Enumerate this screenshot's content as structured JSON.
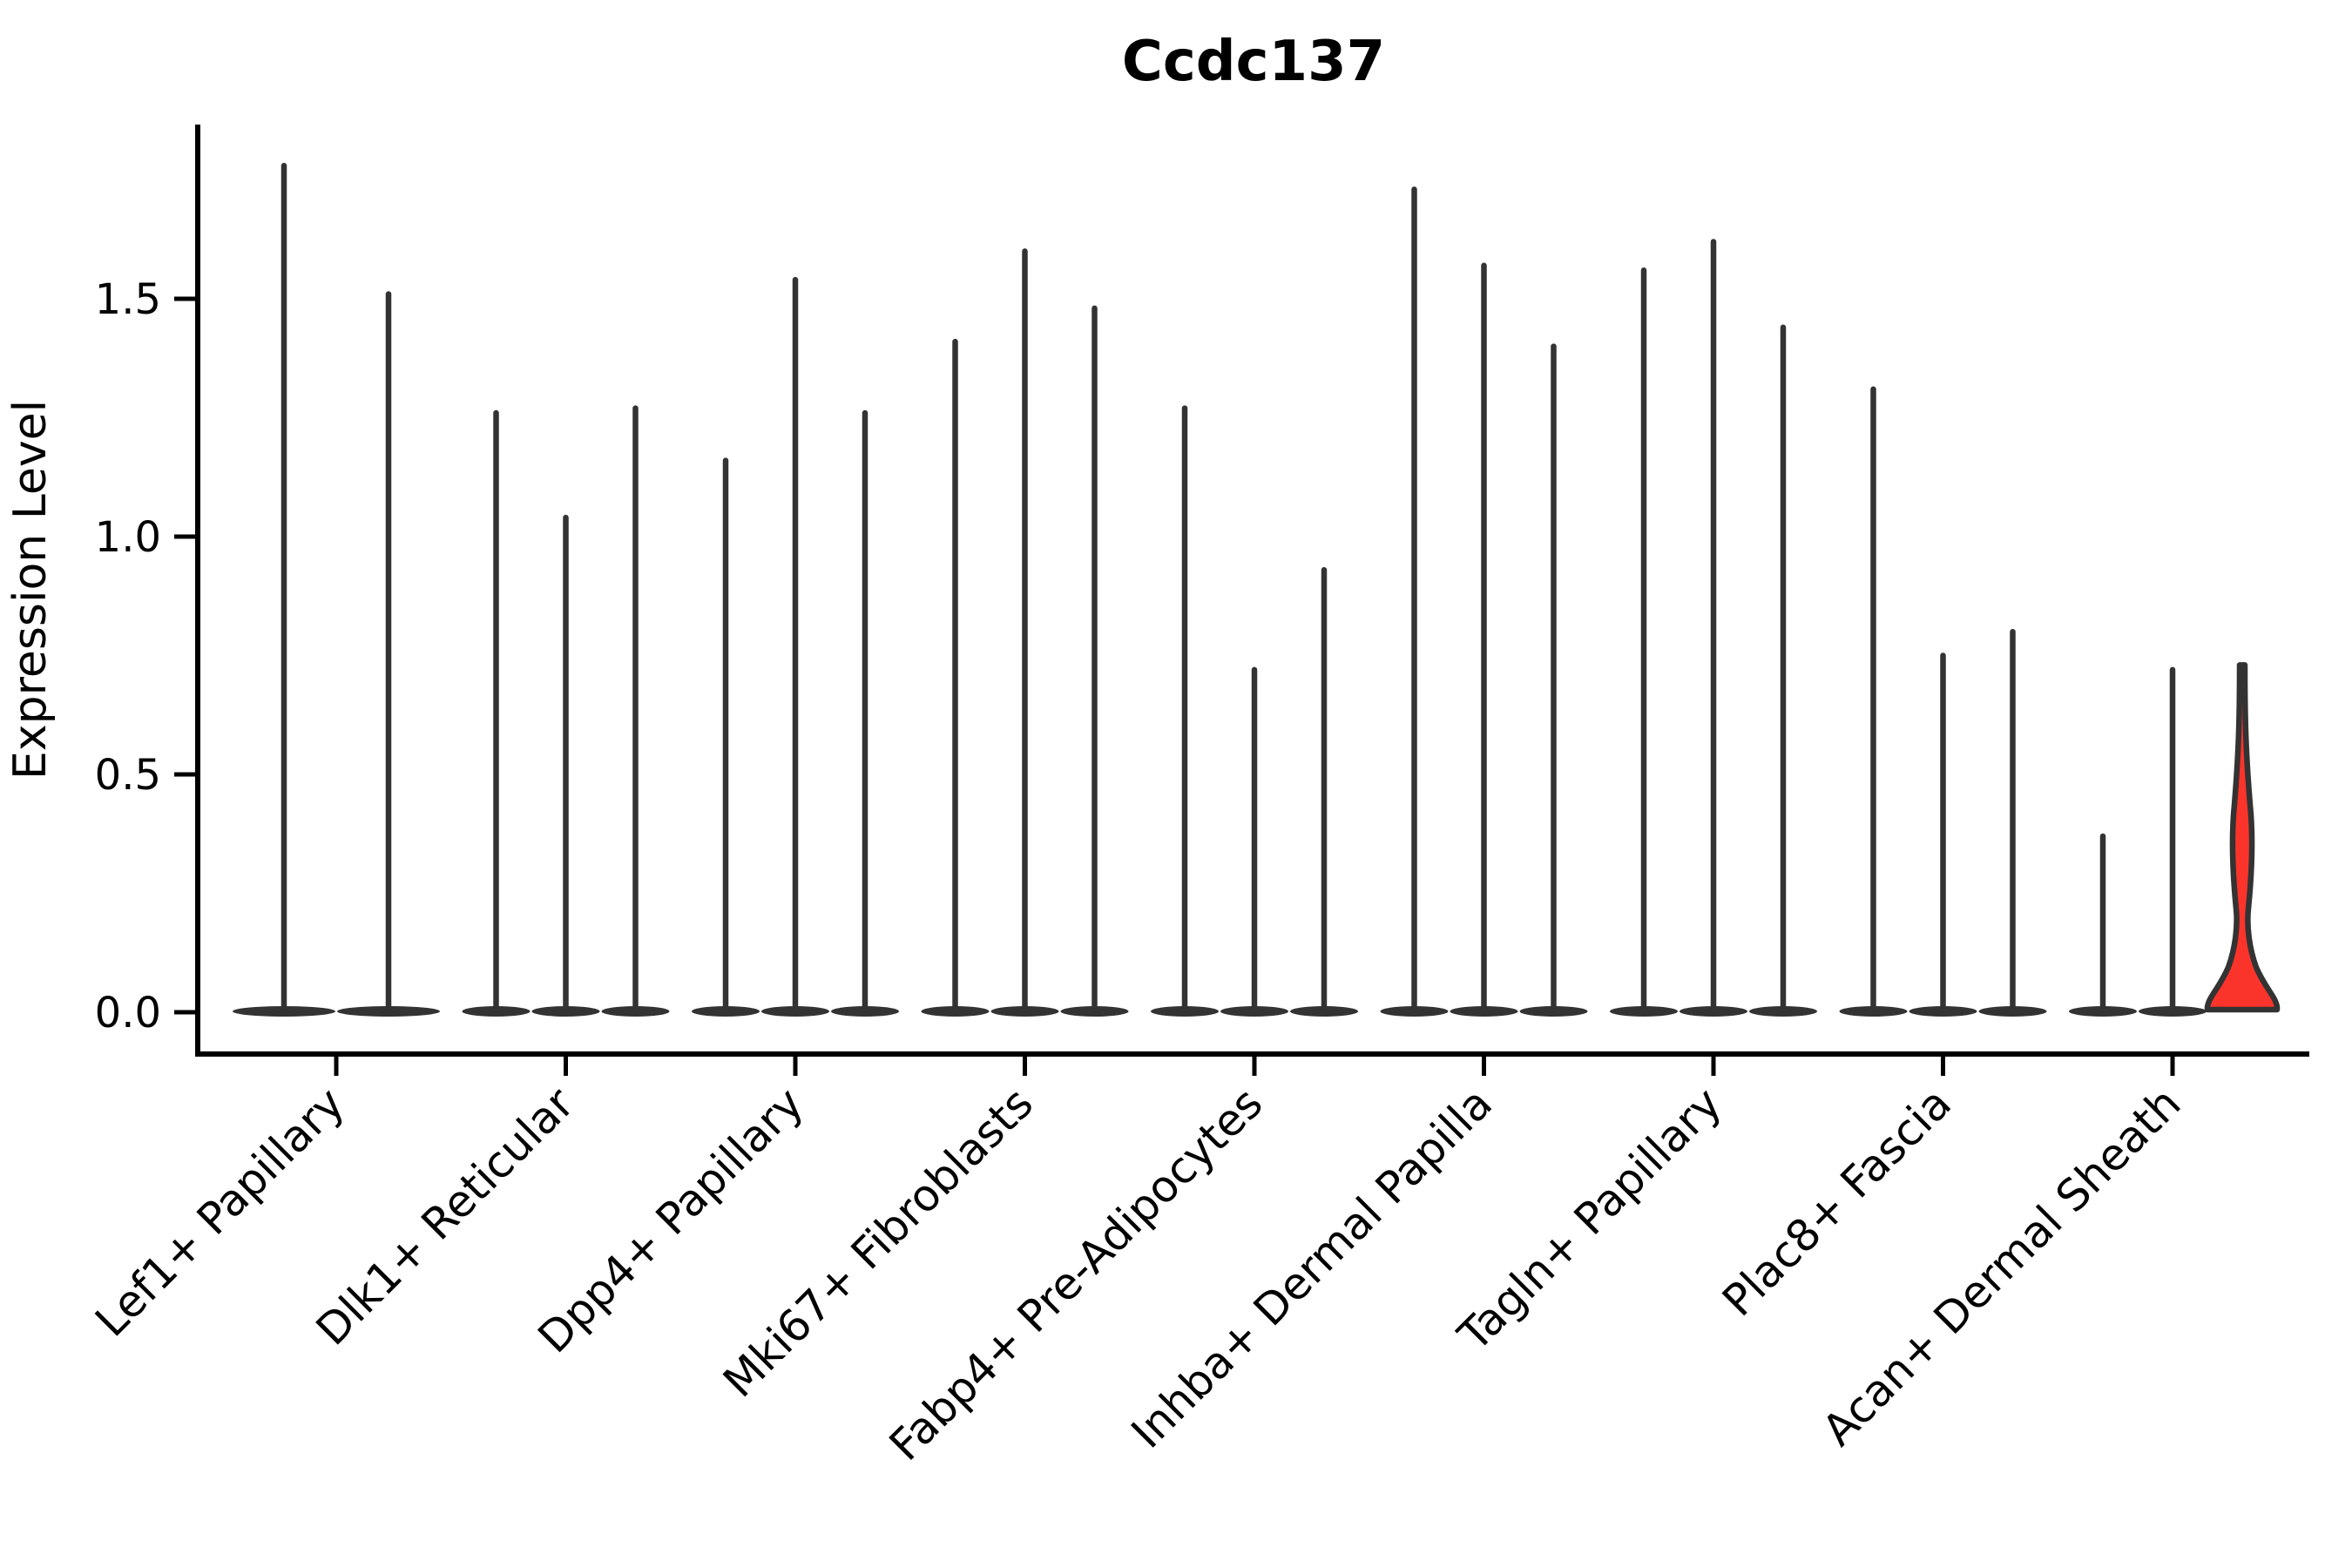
{
  "title": "Ccdc137",
  "ylabel": "Expression Level",
  "colors": {
    "background": "#ffffff",
    "violin_line": "#333333",
    "highlight_fill": "#fa342b",
    "axis": "#000000",
    "text": "#000000"
  },
  "chart_data": {
    "type": "violin",
    "title": "Ccdc137",
    "xlabel": "",
    "ylabel": "Expression Level",
    "yticks": [
      "0.0",
      "0.5",
      "1.0",
      "1.5"
    ],
    "ylim": [
      0,
      1.86
    ],
    "grid": false,
    "legend": "none",
    "x_tick_rotation": 45,
    "description": "Violin plot of Ccdc137 expression; each category holds 2-3 ultra-thin violins (spikes with flat bases at 0); the last violin of Acan+ Dermal Sheath is red-filled with a visible density bulge near 0.",
    "categories": [
      "Lef1+ Papillary",
      "Dlk1+ Reticular",
      "Dpp4+ Papillary",
      "Mki67+ Fibroblasts",
      "Fabp4+ Pre-Adipocytes",
      "Inhba+ Dermal Papilla",
      "Tagln+ Papillary",
      "Plac8+ Fascia",
      "Acan+ Dermal Sheath"
    ],
    "groups": [
      {
        "category": "Lef1+ Papillary",
        "violins": [
          {
            "max": 1.78
          },
          {
            "max": 1.51
          }
        ]
      },
      {
        "category": "Dlk1+ Reticular",
        "violins": [
          {
            "max": 1.26
          },
          {
            "max": 1.04
          },
          {
            "max": 1.27
          }
        ]
      },
      {
        "category": "Dpp4+ Papillary",
        "violins": [
          {
            "max": 1.16
          },
          {
            "max": 1.54
          },
          {
            "max": 1.26
          }
        ]
      },
      {
        "category": "Mki67+ Fibroblasts",
        "violins": [
          {
            "max": 1.41
          },
          {
            "max": 1.6
          },
          {
            "max": 1.48
          }
        ]
      },
      {
        "category": "Fabp4+ Pre-Adipocytes",
        "violins": [
          {
            "max": 1.27
          },
          {
            "max": 0.72
          },
          {
            "max": 0.93
          }
        ]
      },
      {
        "category": "Inhba+ Dermal Papilla",
        "violins": [
          {
            "max": 1.73
          },
          {
            "max": 1.57
          },
          {
            "max": 1.4
          }
        ]
      },
      {
        "category": "Tagln+ Papillary",
        "violins": [
          {
            "max": 1.56
          },
          {
            "max": 1.62
          },
          {
            "max": 1.44
          }
        ]
      },
      {
        "category": "Plac8+ Fascia",
        "violins": [
          {
            "max": 1.31
          },
          {
            "max": 0.75
          },
          {
            "max": 0.8
          }
        ]
      },
      {
        "category": "Acan+ Dermal Sheath",
        "violins": [
          {
            "max": 0.37
          },
          {
            "max": 0.72
          },
          {
            "max": 0.73,
            "filled": true
          }
        ]
      }
    ]
  }
}
